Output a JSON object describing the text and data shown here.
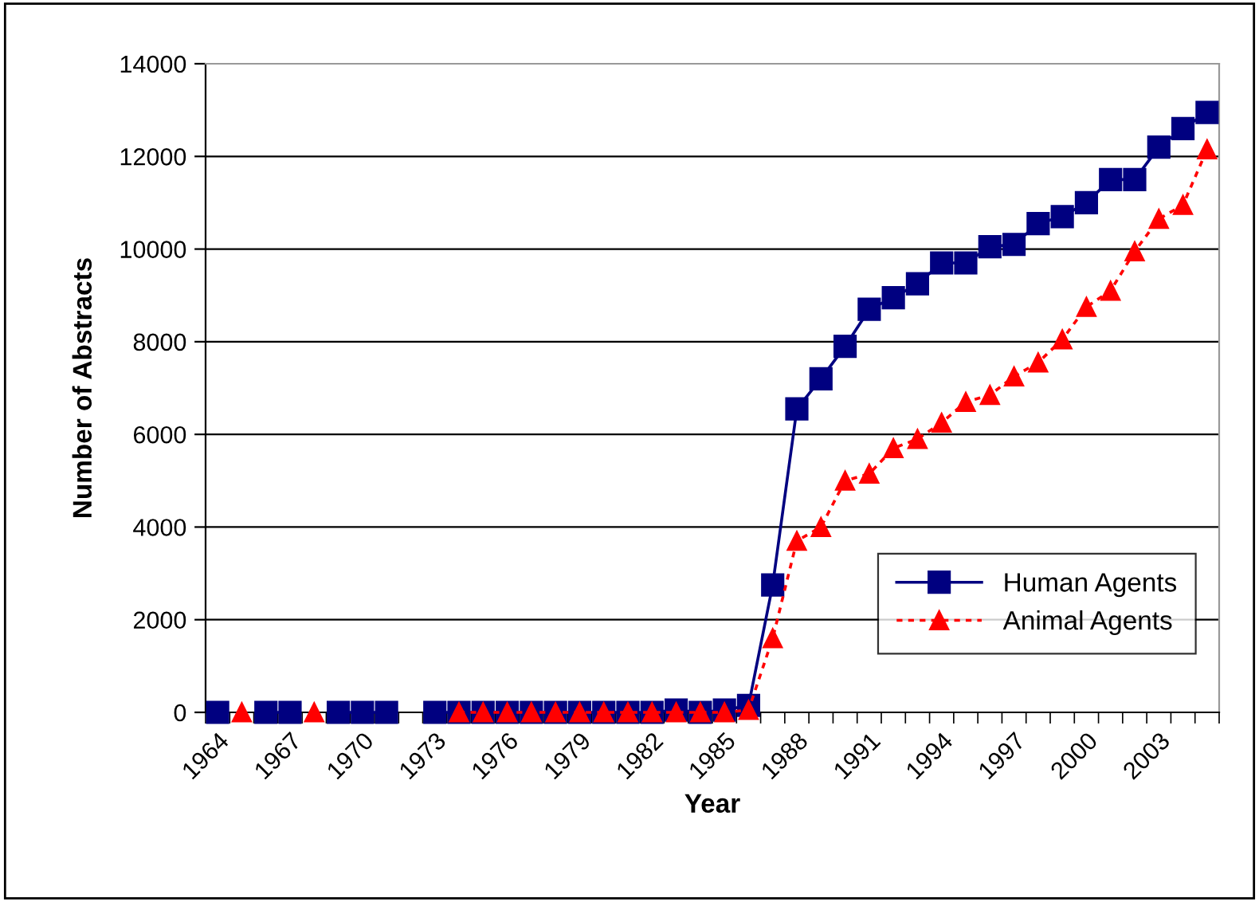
{
  "chart_data": {
    "type": "line",
    "xlabel": "Year",
    "ylabel": "Number of Abstracts",
    "categories": [
      "1964",
      null,
      null,
      "1967",
      null,
      null,
      "1970",
      null,
      null,
      "1973",
      null,
      null,
      "1976",
      null,
      null,
      "1979",
      null,
      null,
      "1982",
      null,
      null,
      "1985",
      null,
      null,
      "1988",
      null,
      null,
      "1991",
      null,
      null,
      "1994",
      null,
      null,
      "1997",
      null,
      null,
      "2000",
      null,
      null,
      "2003",
      null,
      null
    ],
    "series": [
      {
        "name": "Human Agents",
        "color": "#000080",
        "marker": "square",
        "line_style": "solid",
        "values": [
          0,
          null,
          0,
          0,
          null,
          0,
          0,
          0,
          null,
          0,
          0,
          0,
          0,
          0,
          0,
          0,
          0,
          0,
          0,
          50,
          0,
          50,
          150,
          2750,
          6550,
          7200,
          7900,
          8700,
          8950,
          9250,
          9700,
          9700,
          10050,
          10100,
          10550,
          10700,
          11000,
          11500,
          11500,
          12200,
          12600,
          12950
        ]
      },
      {
        "name": "Animal Agents",
        "color": "#ff0000",
        "marker": "triangle",
        "line_style": "dotted",
        "values": [
          null,
          0,
          null,
          null,
          0,
          null,
          null,
          null,
          null,
          null,
          0,
          0,
          0,
          0,
          0,
          0,
          0,
          0,
          0,
          0,
          0,
          0,
          50,
          1600,
          3700,
          4000,
          5000,
          5150,
          5700,
          5900,
          6250,
          6700,
          6850,
          7250,
          7550,
          8050,
          8750,
          9100,
          9950,
          10650,
          10950,
          12150
        ]
      }
    ],
    "ylim": [
      0,
      14000
    ],
    "yticks": [
      0,
      2000,
      4000,
      6000,
      8000,
      10000,
      12000,
      14000
    ],
    "grid": "y",
    "legend": "lower right"
  }
}
